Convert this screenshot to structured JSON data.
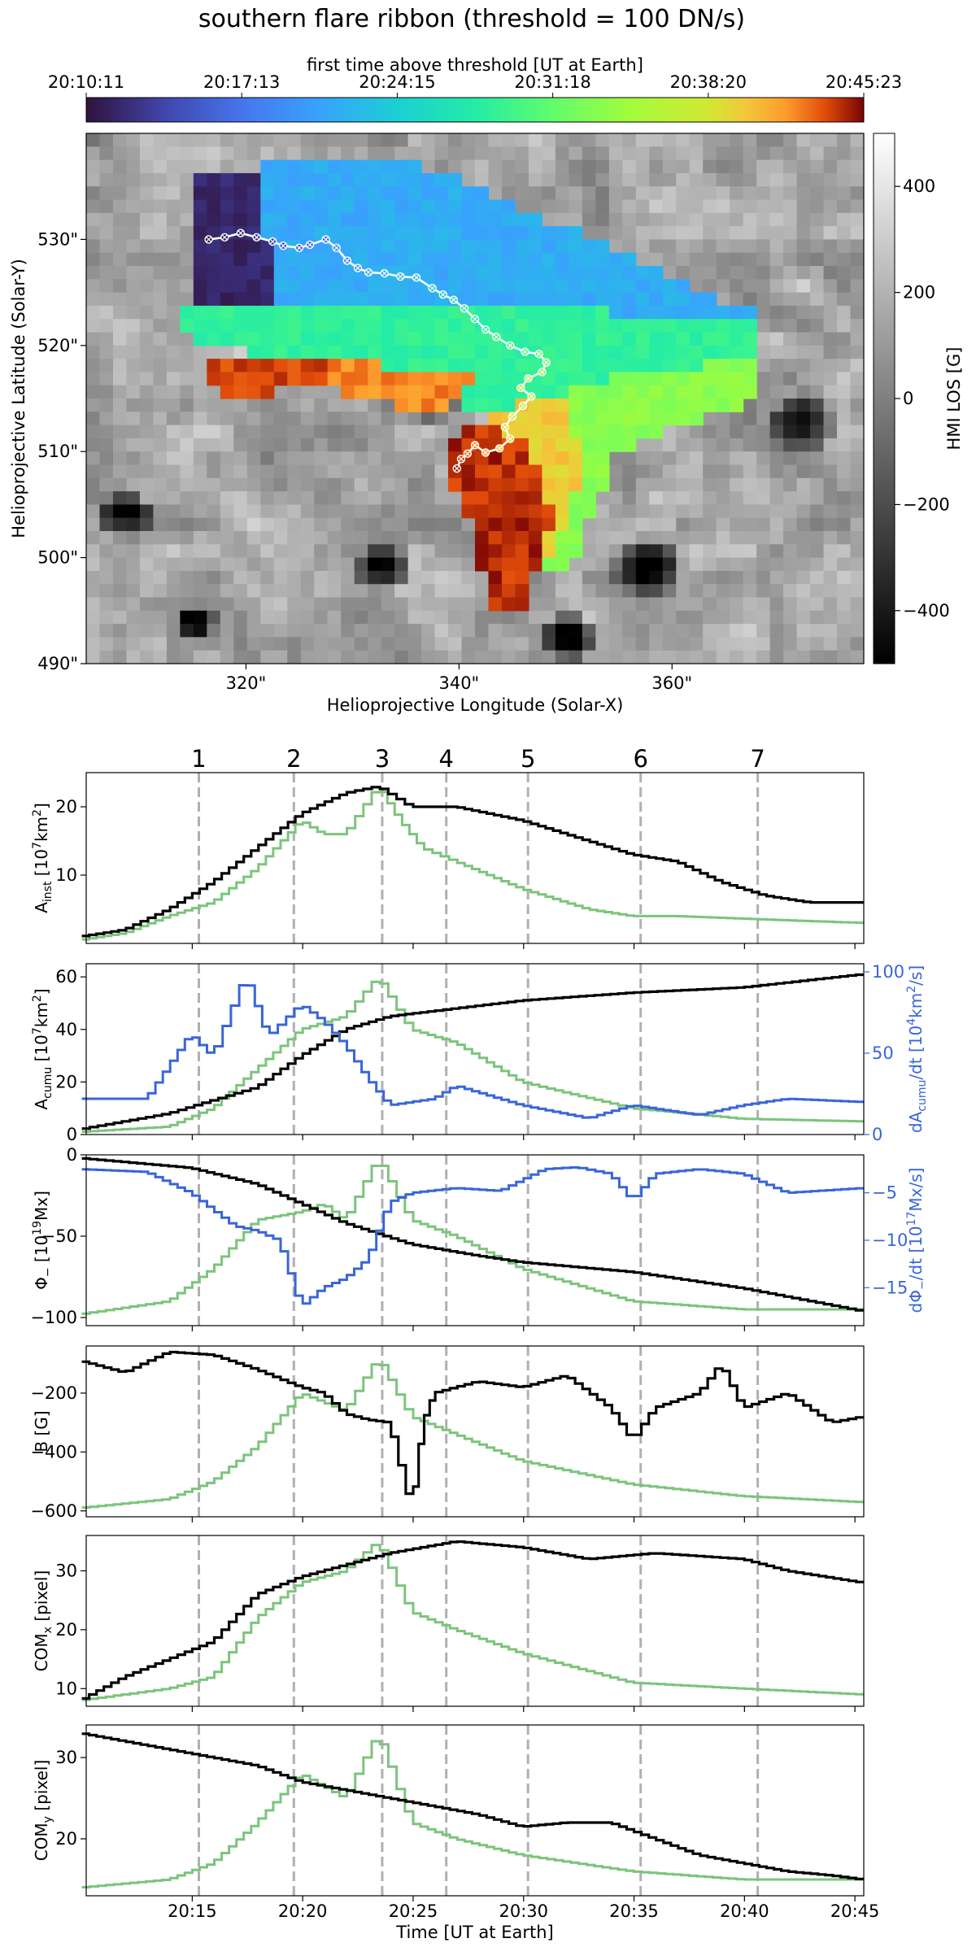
{
  "title": "southern flare ribbon (threshold = 100 DN/s)",
  "chart_data": [
    {
      "type": "heatmap",
      "title": "southern flare ribbon (threshold = 100 DN/s)",
      "colorbar_top": {
        "label": "first time above threshold [UT at Earth]",
        "ticks": [
          "20:10:11",
          "20:17:13",
          "20:24:15",
          "20:31:18",
          "20:38:20",
          "20:45:23"
        ],
        "colormap": "turbo"
      },
      "colorbar_right": {
        "label": "HMI LOS [G]",
        "ticks": [
          400,
          200,
          0,
          -200,
          -400
        ],
        "range": [
          -500,
          500
        ],
        "colormap": "gray"
      },
      "xlabel": "Helioprojective Longitude (Solar-X)",
      "ylabel": "Helioprojective Latitude (Solar-Y)",
      "xticks": [
        "320\"",
        "340\"",
        "360\""
      ],
      "yticks": [
        "530\"",
        "520\"",
        "510\"",
        "500\"",
        "490\""
      ],
      "xlim": [
        305,
        378
      ],
      "ylim": [
        490,
        540
      ],
      "ribbon_path": [
        [
          316.5,
          530
        ],
        [
          318,
          530.2
        ],
        [
          319.5,
          530.6
        ],
        [
          321,
          530.2
        ],
        [
          322.5,
          529.8
        ],
        [
          323.5,
          529.4
        ],
        [
          325,
          529.2
        ],
        [
          326,
          529.5
        ],
        [
          327.5,
          530
        ],
        [
          328.5,
          529.2
        ],
        [
          329.5,
          528
        ],
        [
          330.5,
          527.3
        ],
        [
          331.5,
          526.9
        ],
        [
          333,
          526.8
        ],
        [
          334.5,
          526.5
        ],
        [
          336,
          526.4
        ],
        [
          337.5,
          525.4
        ],
        [
          338.5,
          524.8
        ],
        [
          339.5,
          524.3
        ],
        [
          340.5,
          523.5
        ],
        [
          341.5,
          522.5
        ],
        [
          342.5,
          521.5
        ],
        [
          343.5,
          520.8
        ],
        [
          344.8,
          520
        ],
        [
          346.2,
          519.4
        ],
        [
          347.5,
          519.2
        ],
        [
          348.2,
          518.4
        ],
        [
          347.8,
          517.5
        ],
        [
          346.5,
          516.9
        ],
        [
          345.8,
          516
        ],
        [
          346.8,
          515.2
        ],
        [
          346,
          514.3
        ],
        [
          345,
          513.3
        ],
        [
          344.3,
          512.3
        ],
        [
          344.8,
          511.2
        ],
        [
          343.8,
          510.3
        ],
        [
          342.5,
          509.9
        ],
        [
          341.5,
          510.6
        ],
        [
          340.8,
          509.8
        ],
        [
          340.2,
          509.3
        ],
        [
          339.8,
          508.4
        ]
      ]
    },
    {
      "type": "line",
      "event_markers": {
        "labels": [
          "1",
          "2",
          "3",
          "4",
          "5",
          "6",
          "7"
        ],
        "times_min": [
          15.3,
          19.6,
          23.6,
          26.5,
          30.2,
          35.3,
          40.6
        ]
      },
      "xlabel": "Time [UT at Earth]",
      "xticks": [
        "20:15",
        "20:20",
        "20:25",
        "20:30",
        "20:35",
        "20:40",
        "20:45"
      ],
      "xlim_min_after_2010": [
        10.2,
        45.4
      ],
      "panels": [
        {
          "ylabel": "A_inst [10^7km^2]",
          "ylim": [
            0,
            25
          ],
          "yticks": [
            10,
            20
          ],
          "series": [
            {
              "color": "#000000",
              "x": [
                10,
                12,
                14,
                16,
                18,
                20,
                22,
                23.5,
                25,
                27,
                30,
                33,
                35,
                37,
                39,
                41,
                43,
                45.4
              ],
              "y": [
                1,
                2,
                5,
                9,
                14,
                19,
                22,
                23,
                20,
                20,
                18,
                15,
                13,
                12,
                9,
                7,
                6,
                6
              ]
            },
            {
              "color": "#7cc47c",
              "x": [
                10,
                12,
                14,
                16,
                18,
                20,
                21,
                22,
                23.5,
                24.5,
                25.5,
                27,
                30,
                33,
                35,
                37,
                41,
                45.4
              ],
              "y": [
                0.5,
                1.5,
                4,
                6,
                11,
                18,
                16,
                16,
                23,
                18,
                14,
                12,
                8,
                5,
                4,
                4,
                3.5,
                3
              ]
            }
          ]
        },
        {
          "ylabel": "A_cumu [10^7km^2]",
          "ylim": [
            0,
            65
          ],
          "yticks": [
            0,
            20,
            40,
            60
          ],
          "right_ylabel": "dA_cumu/dt [10^4km^2/s]",
          "right_ylim": [
            0,
            105
          ],
          "right_yticks": [
            0,
            50,
            100
          ],
          "series": [
            {
              "color": "#000000",
              "x": [
                10,
                14,
                18,
                20,
                22,
                24,
                26,
                30,
                35,
                40,
                45.4
              ],
              "y": [
                2,
                8,
                18,
                30,
                40,
                45,
                47,
                51,
                54,
                56,
                61
              ]
            },
            {
              "color": "#7cc47c",
              "x": [
                10,
                14,
                16,
                18,
                20,
                22,
                23.5,
                25,
                27,
                30,
                35,
                40,
                45.4
              ],
              "y": [
                1,
                3,
                10,
                25,
                40,
                45,
                60,
                40,
                35,
                20,
                10,
                6,
                5
              ]
            },
            {
              "axis": "right",
              "color": "#3a65d8",
              "x": [
                10,
                13,
                15,
                16,
                17.5,
                18.5,
                20,
                21,
                22,
                23,
                24,
                26,
                27,
                30,
                33,
                35,
                38,
                40,
                42,
                45.4
              ],
              "y": [
                22,
                22,
                62,
                48,
                98,
                60,
                80,
                70,
                55,
                35,
                18,
                22,
                30,
                18,
                10,
                18,
                12,
                18,
                22,
                20
              ]
            }
          ]
        },
        {
          "ylabel": "Φ_− [10^19Mx]",
          "ylim": [
            -105,
            0
          ],
          "yticks": [
            0,
            -50,
            -100
          ],
          "right_ylabel": "dΦ_−/dt [10^17Mx/s]",
          "right_ylim": [
            -19,
            -1
          ],
          "right_yticks": [
            -5,
            -10,
            -15
          ],
          "series": [
            {
              "color": "#000000",
              "x": [
                10,
                15,
                18,
                20,
                22,
                25,
                28,
                30,
                35,
                40,
                45.4
              ],
              "y": [
                -2,
                -8,
                -18,
                -30,
                -42,
                -55,
                -62,
                -66,
                -72,
                -82,
                -96
              ]
            },
            {
              "color": "#7cc47c",
              "x": [
                10,
                14,
                16,
                18,
                20,
                21,
                22,
                23.5,
                25,
                27,
                30,
                35,
                40,
                45.4
              ],
              "y": [
                -98,
                -90,
                -70,
                -40,
                -35,
                -30,
                -40,
                -2,
                -40,
                -50,
                -70,
                -90,
                -95,
                -95
              ]
            },
            {
              "axis": "right",
              "color": "#3a65d8",
              "x": [
                10,
                13,
                15,
                17,
                18,
                19,
                20,
                21,
                22,
                23,
                24,
                25,
                27,
                29,
                31,
                32.5,
                34,
                35,
                36,
                38,
                40,
                42,
                45.4
              ],
              "y": [
                -2.5,
                -2.8,
                -5,
                -8.5,
                -9,
                -10,
                -17,
                -15,
                -14,
                -12,
                -6,
                -5,
                -4.5,
                -4.8,
                -2.5,
                -2.3,
                -3,
                -5.8,
                -3,
                -2.5,
                -3,
                -5,
                -4.5
              ]
            }
          ]
        },
        {
          "ylabel": "B [G]",
          "ylim": [
            -620,
            -40
          ],
          "yticks": [
            -200,
            -400,
            -600
          ],
          "series": [
            {
              "color": "#000000",
              "x": [
                10,
                12,
                14,
                16,
                18,
                20,
                21,
                22,
                23,
                24,
                25,
                25.5,
                26,
                28,
                30,
                32,
                34,
                35,
                36,
                38,
                39,
                40,
                42,
                44,
                45.4
              ],
              "y": [
                -90,
                -130,
                -60,
                -70,
                -120,
                -180,
                -200,
                -270,
                -290,
                -300,
                -590,
                -300,
                -200,
                -160,
                -180,
                -140,
                -250,
                -360,
                -250,
                -200,
                -100,
                -250,
                -200,
                -300,
                -280
              ]
            },
            {
              "color": "#7cc47c",
              "x": [
                10,
                14,
                16,
                18,
                20,
                22,
                23.5,
                25,
                27,
                30,
                35,
                40,
                45.4
              ],
              "y": [
                -590,
                -560,
                -500,
                -380,
                -200,
                -260,
                -80,
                -280,
                -340,
                -430,
                -510,
                -550,
                -570
              ]
            }
          ]
        },
        {
          "ylabel": "COM_x [pixel]",
          "ylim": [
            7,
            36
          ],
          "yticks": [
            10,
            20,
            30
          ],
          "series": [
            {
              "color": "#000000",
              "x": [
                10,
                12,
                14,
                16,
                18,
                20,
                22,
                24,
                27,
                30,
                33,
                36,
                40,
                42,
                45.4
              ],
              "y": [
                8,
                12,
                15,
                18,
                26,
                29,
                31,
                33,
                35,
                34,
                32,
                33,
                32,
                30,
                28
              ]
            },
            {
              "color": "#7cc47c",
              "x": [
                10,
                14,
                16,
                18,
                20,
                22,
                23.5,
                25,
                27,
                30,
                35,
                40,
                45.4
              ],
              "y": [
                8,
                10,
                12,
                22,
                28,
                30,
                35,
                23,
                20,
                16,
                11,
                10,
                9
              ]
            }
          ]
        },
        {
          "ylabel": "COM_y [pixel]",
          "ylim": [
            13,
            34
          ],
          "yticks": [
            20,
            30
          ],
          "series": [
            {
              "color": "#000000",
              "x": [
                10,
                12,
                14,
                16,
                18,
                20,
                22,
                24,
                26,
                28,
                30,
                32,
                34,
                36,
                38,
                40,
                42,
                44,
                45.4
              ],
              "y": [
                33,
                32,
                31,
                30,
                29,
                27,
                26,
                25,
                24,
                23,
                21.5,
                22,
                22,
                20,
                18,
                17,
                16,
                15.5,
                15
              ]
            },
            {
              "color": "#7cc47c",
              "x": [
                10,
                14,
                16,
                18,
                20,
                22,
                23.5,
                25,
                27,
                30,
                35,
                40,
                45.4
              ],
              "y": [
                14,
                15,
                17,
                22,
                28,
                25,
                33,
                22,
                20,
                18,
                16,
                15,
                15
              ]
            }
          ]
        }
      ]
    }
  ]
}
